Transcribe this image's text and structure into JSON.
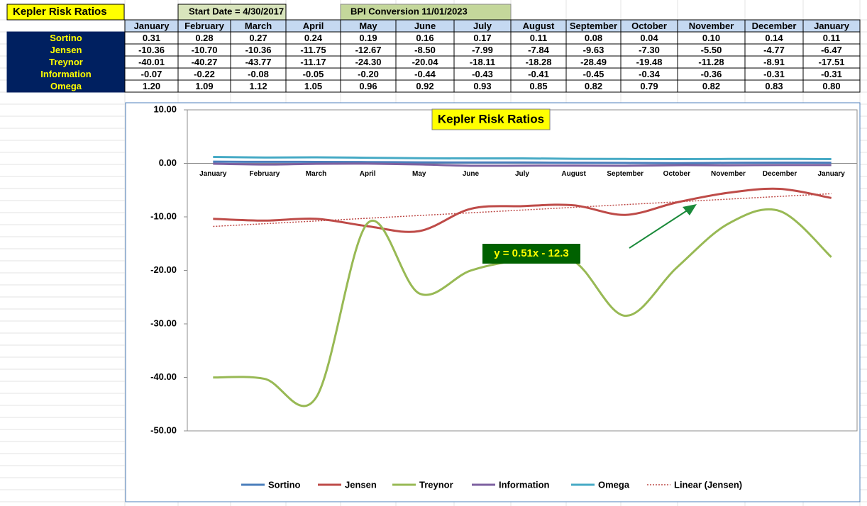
{
  "header": {
    "title": "Kepler Risk Ratios",
    "start_date": "Start Date = 4/30/2017",
    "conversion": "BPI Conversion 11/01/2023"
  },
  "table": {
    "columns": [
      "January",
      "February",
      "March",
      "April",
      "May",
      "June",
      "July",
      "August",
      "September",
      "October",
      "November",
      "December",
      "January"
    ],
    "rows": [
      {
        "label": "Sortino",
        "cells": [
          "0.31",
          "0.28",
          "0.27",
          "0.24",
          "0.19",
          "0.16",
          "0.17",
          "0.11",
          "0.08",
          "0.04",
          "0.10",
          "0.14",
          "0.11"
        ]
      },
      {
        "label": "Jensen",
        "cells": [
          "-10.36",
          "-10.70",
          "-10.36",
          "-11.75",
          "-12.67",
          "-8.50",
          "-7.99",
          "-7.84",
          "-9.63",
          "-7.30",
          "-5.50",
          "-4.77",
          "-6.47"
        ]
      },
      {
        "label": "Treynor",
        "cells": [
          "-40.01",
          "-40.27",
          "-43.77",
          "-11.17",
          "-24.30",
          "-20.04",
          "-18.11",
          "-18.28",
          "-28.49",
          "-19.48",
          "-11.28",
          "-8.91",
          "-17.51"
        ]
      },
      {
        "label": "Information",
        "cells": [
          "-0.07",
          "-0.22",
          "-0.08",
          "-0.05",
          "-0.20",
          "-0.44",
          "-0.43",
          "-0.41",
          "-0.45",
          "-0.34",
          "-0.36",
          "-0.31",
          "-0.31"
        ]
      },
      {
        "label": "Omega",
        "cells": [
          "1.20",
          "1.09",
          "1.12",
          "1.05",
          "0.96",
          "0.92",
          "0.93",
          "0.85",
          "0.82",
          "0.79",
          "0.82",
          "0.83",
          "0.80"
        ]
      }
    ]
  },
  "chart_data": {
    "type": "line",
    "title": "Kepler Risk Ratios",
    "annotation": "y = 0.51x - 12.3",
    "categories": [
      "January",
      "February",
      "March",
      "April",
      "May",
      "June",
      "July",
      "August",
      "September",
      "October",
      "November",
      "December",
      "January"
    ],
    "ylim": [
      -50,
      10
    ],
    "yticks": [
      {
        "value": 10,
        "label": "10.00"
      },
      {
        "value": 0,
        "label": "0.00"
      },
      {
        "value": -10,
        "label": "-10.00"
      },
      {
        "value": -20,
        "label": "-20.00"
      },
      {
        "value": -30,
        "label": "-30.00"
      },
      {
        "value": -40,
        "label": "-40.00"
      },
      {
        "value": -50,
        "label": "-50.00"
      }
    ],
    "grid": false,
    "legend": "bottom",
    "series": [
      {
        "name": "Sortino",
        "color": "#4a7ebb",
        "values": [
          0.31,
          0.28,
          0.27,
          0.24,
          0.19,
          0.16,
          0.17,
          0.11,
          0.08,
          0.04,
          0.1,
          0.14,
          0.11
        ]
      },
      {
        "name": "Jensen",
        "color": "#be4b48",
        "values": [
          -10.36,
          -10.7,
          -10.36,
          -11.75,
          -12.67,
          -8.5,
          -7.99,
          -7.84,
          -9.63,
          -7.3,
          -5.5,
          -4.77,
          -6.47
        ]
      },
      {
        "name": "Treynor",
        "color": "#98b954",
        "values": [
          -40.01,
          -40.27,
          -43.77,
          -11.17,
          -24.3,
          -20.04,
          -18.11,
          -18.28,
          -28.49,
          -19.48,
          -11.28,
          -8.91,
          -17.51
        ]
      },
      {
        "name": "Information",
        "color": "#7d60a0",
        "values": [
          -0.07,
          -0.22,
          -0.08,
          -0.05,
          -0.2,
          -0.44,
          -0.43,
          -0.41,
          -0.45,
          -0.34,
          -0.36,
          -0.31,
          -0.31
        ]
      },
      {
        "name": "Omega",
        "color": "#46aac5",
        "values": [
          1.2,
          1.09,
          1.12,
          1.05,
          0.96,
          0.92,
          0.93,
          0.85,
          0.82,
          0.79,
          0.82,
          0.83,
          0.8
        ]
      },
      {
        "name": "Linear (Jensen)",
        "color": "#be4b48",
        "dashed": true,
        "values": [
          -11.79,
          -11.28,
          -10.77,
          -10.26,
          -9.75,
          -9.24,
          -8.73,
          -8.22,
          -7.71,
          -7.2,
          -6.69,
          -6.18,
          -5.67
        ]
      }
    ]
  }
}
